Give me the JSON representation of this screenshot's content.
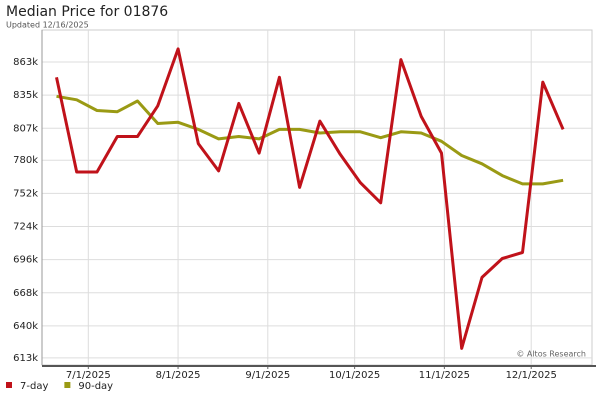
{
  "chart_data": {
    "type": "line",
    "title": "Median Price for 01876",
    "subtitle": "Updated 12/16/2025",
    "watermark": "© Altos Research",
    "x": [
      "2025-06-20",
      "2025-06-27",
      "2025-07-04",
      "2025-07-11",
      "2025-07-18",
      "2025-07-25",
      "2025-08-01",
      "2025-08-08",
      "2025-08-15",
      "2025-08-22",
      "2025-08-29",
      "2025-09-05",
      "2025-09-12",
      "2025-09-19",
      "2025-09-26",
      "2025-10-03",
      "2025-10-10",
      "2025-10-17",
      "2025-10-24",
      "2025-10-31",
      "2025-11-07",
      "2025-11-14",
      "2025-11-21",
      "2025-11-28",
      "2025-12-05",
      "2025-12-12"
    ],
    "series": [
      {
        "name": "7-day",
        "color": "#c0121a",
        "values": [
          850000,
          770000,
          770000,
          800000,
          800000,
          826000,
          874000,
          794000,
          771000,
          828000,
          786000,
          850000,
          757000,
          813000,
          785000,
          761000,
          744000,
          865000,
          817000,
          786000,
          621000,
          681000,
          697000,
          702000,
          846000,
          806000
        ]
      },
      {
        "name": "90-day",
        "color": "#9a9a14",
        "values": [
          834000,
          831000,
          822000,
          821000,
          830000,
          811000,
          812000,
          806000,
          798000,
          800000,
          798000,
          806000,
          806000,
          803000,
          804000,
          804000,
          799000,
          804000,
          803000,
          796000,
          784000,
          777000,
          767000,
          760000,
          760000,
          763000
        ]
      }
    ],
    "xlim": [
      "2025-06-15",
      "2025-12-22"
    ],
    "xticks": [
      {
        "value": "2025-07-01",
        "label": "7/1/2025"
      },
      {
        "value": "2025-08-01",
        "label": "8/1/2025"
      },
      {
        "value": "2025-09-01",
        "label": "9/1/2025"
      },
      {
        "value": "2025-10-01",
        "label": "10/1/2025"
      },
      {
        "value": "2025-11-01",
        "label": "11/1/2025"
      },
      {
        "value": "2025-12-01",
        "label": "12/1/2025"
      }
    ],
    "ylim": [
      607000,
      890000
    ],
    "yticks": [
      {
        "value": 613000,
        "label": "613k"
      },
      {
        "value": 640000,
        "label": "640k"
      },
      {
        "value": 668000,
        "label": "668k"
      },
      {
        "value": 696000,
        "label": "696k"
      },
      {
        "value": 724000,
        "label": "724k"
      },
      {
        "value": 752000,
        "label": "752k"
      },
      {
        "value": 780000,
        "label": "780k"
      },
      {
        "value": 807000,
        "label": "807k"
      },
      {
        "value": 835000,
        "label": "835k"
      },
      {
        "value": 863000,
        "label": "863k"
      }
    ],
    "grid": true
  }
}
